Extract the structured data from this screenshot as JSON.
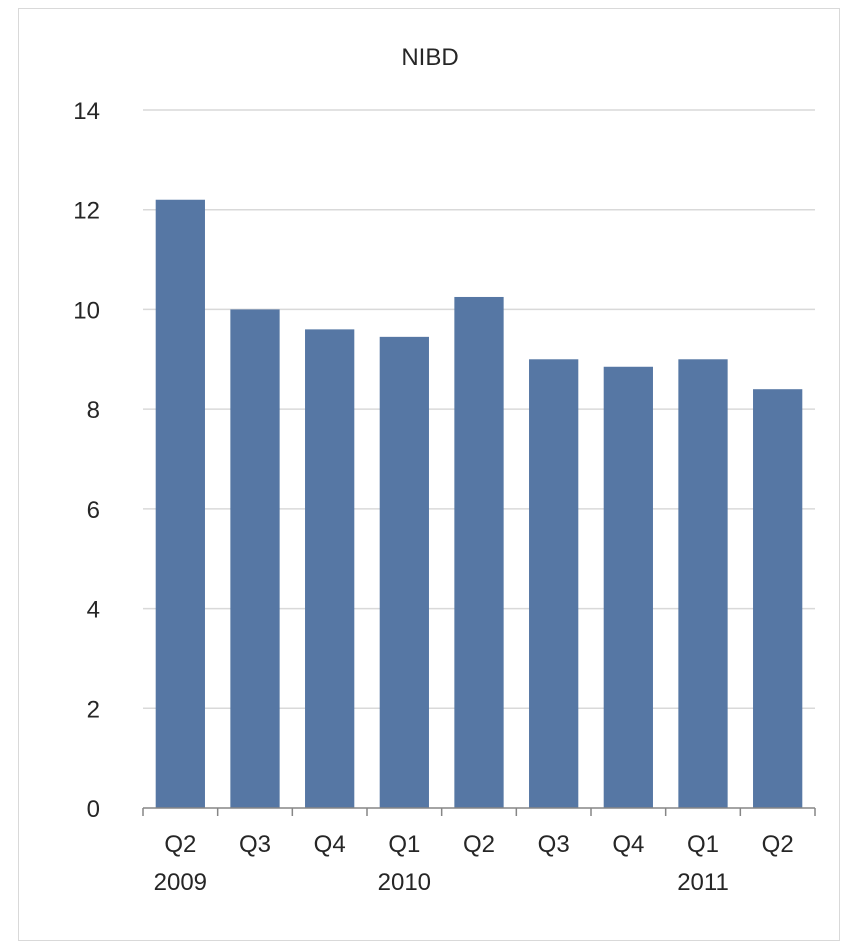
{
  "chart_data": {
    "type": "bar",
    "title": "NIBD",
    "categories": [
      "Q2",
      "Q3",
      "Q4",
      "Q1",
      "Q2",
      "Q3",
      "Q4",
      "Q1",
      "Q2"
    ],
    "year_labels": [
      {
        "label": "2009",
        "category_index": 0
      },
      {
        "label": "2010",
        "category_index": 3
      },
      {
        "label": "2011",
        "category_index": 7
      }
    ],
    "values": [
      12.2,
      10.0,
      9.6,
      9.45,
      10.25,
      9.0,
      8.85,
      9.0,
      8.4
    ],
    "ylim": [
      0,
      14
    ],
    "yticks": [
      "0",
      "2",
      "4",
      "6",
      "8",
      "10",
      "12",
      "14"
    ],
    "xlabel": "",
    "ylabel": "",
    "grid": true,
    "legend": "none",
    "bar_color": "#5677a4",
    "grid_color": "#d9d9d9",
    "axis_color": "#868686"
  }
}
